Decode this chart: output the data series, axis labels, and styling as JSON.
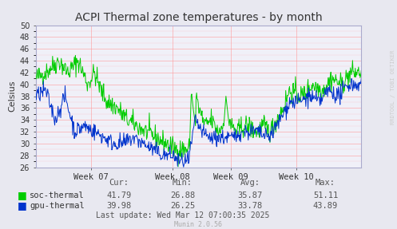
{
  "title": "ACPI Thermal zone temperatures - by month",
  "ylabel": "Celsius",
  "ylim": [
    26,
    50
  ],
  "week_labels": [
    "Week 07",
    "Week 08",
    "Week 09",
    "Week 10"
  ],
  "bg_color": "#e8e8f0",
  "plot_bg_color": "#f0f0f8",
  "grid_color": "#ff9999",
  "soc_color": "#00cc00",
  "gpu_color": "#0033cc",
  "axis_color": "#aaaacc",
  "title_color": "#333333",
  "legend_text_color": "#333333",
  "stats_color": "#555555",
  "munin_color": "#aaaaaa",
  "watermark_color": "#cccccc",
  "soc_stats": {
    "cur": "41.79",
    "min": "26.88",
    "avg": "35.87",
    "max": "51.11"
  },
  "gpu_stats": {
    "cur": "39.98",
    "min": "26.25",
    "avg": "33.78",
    "max": "43.89"
  },
  "last_update": "Last update: Wed Mar 12 07:00:35 2025",
  "munin_version": "Munin 2.0.56",
  "watermark": "RRDTOOL / TOBI OETIKER",
  "num_points": 600
}
